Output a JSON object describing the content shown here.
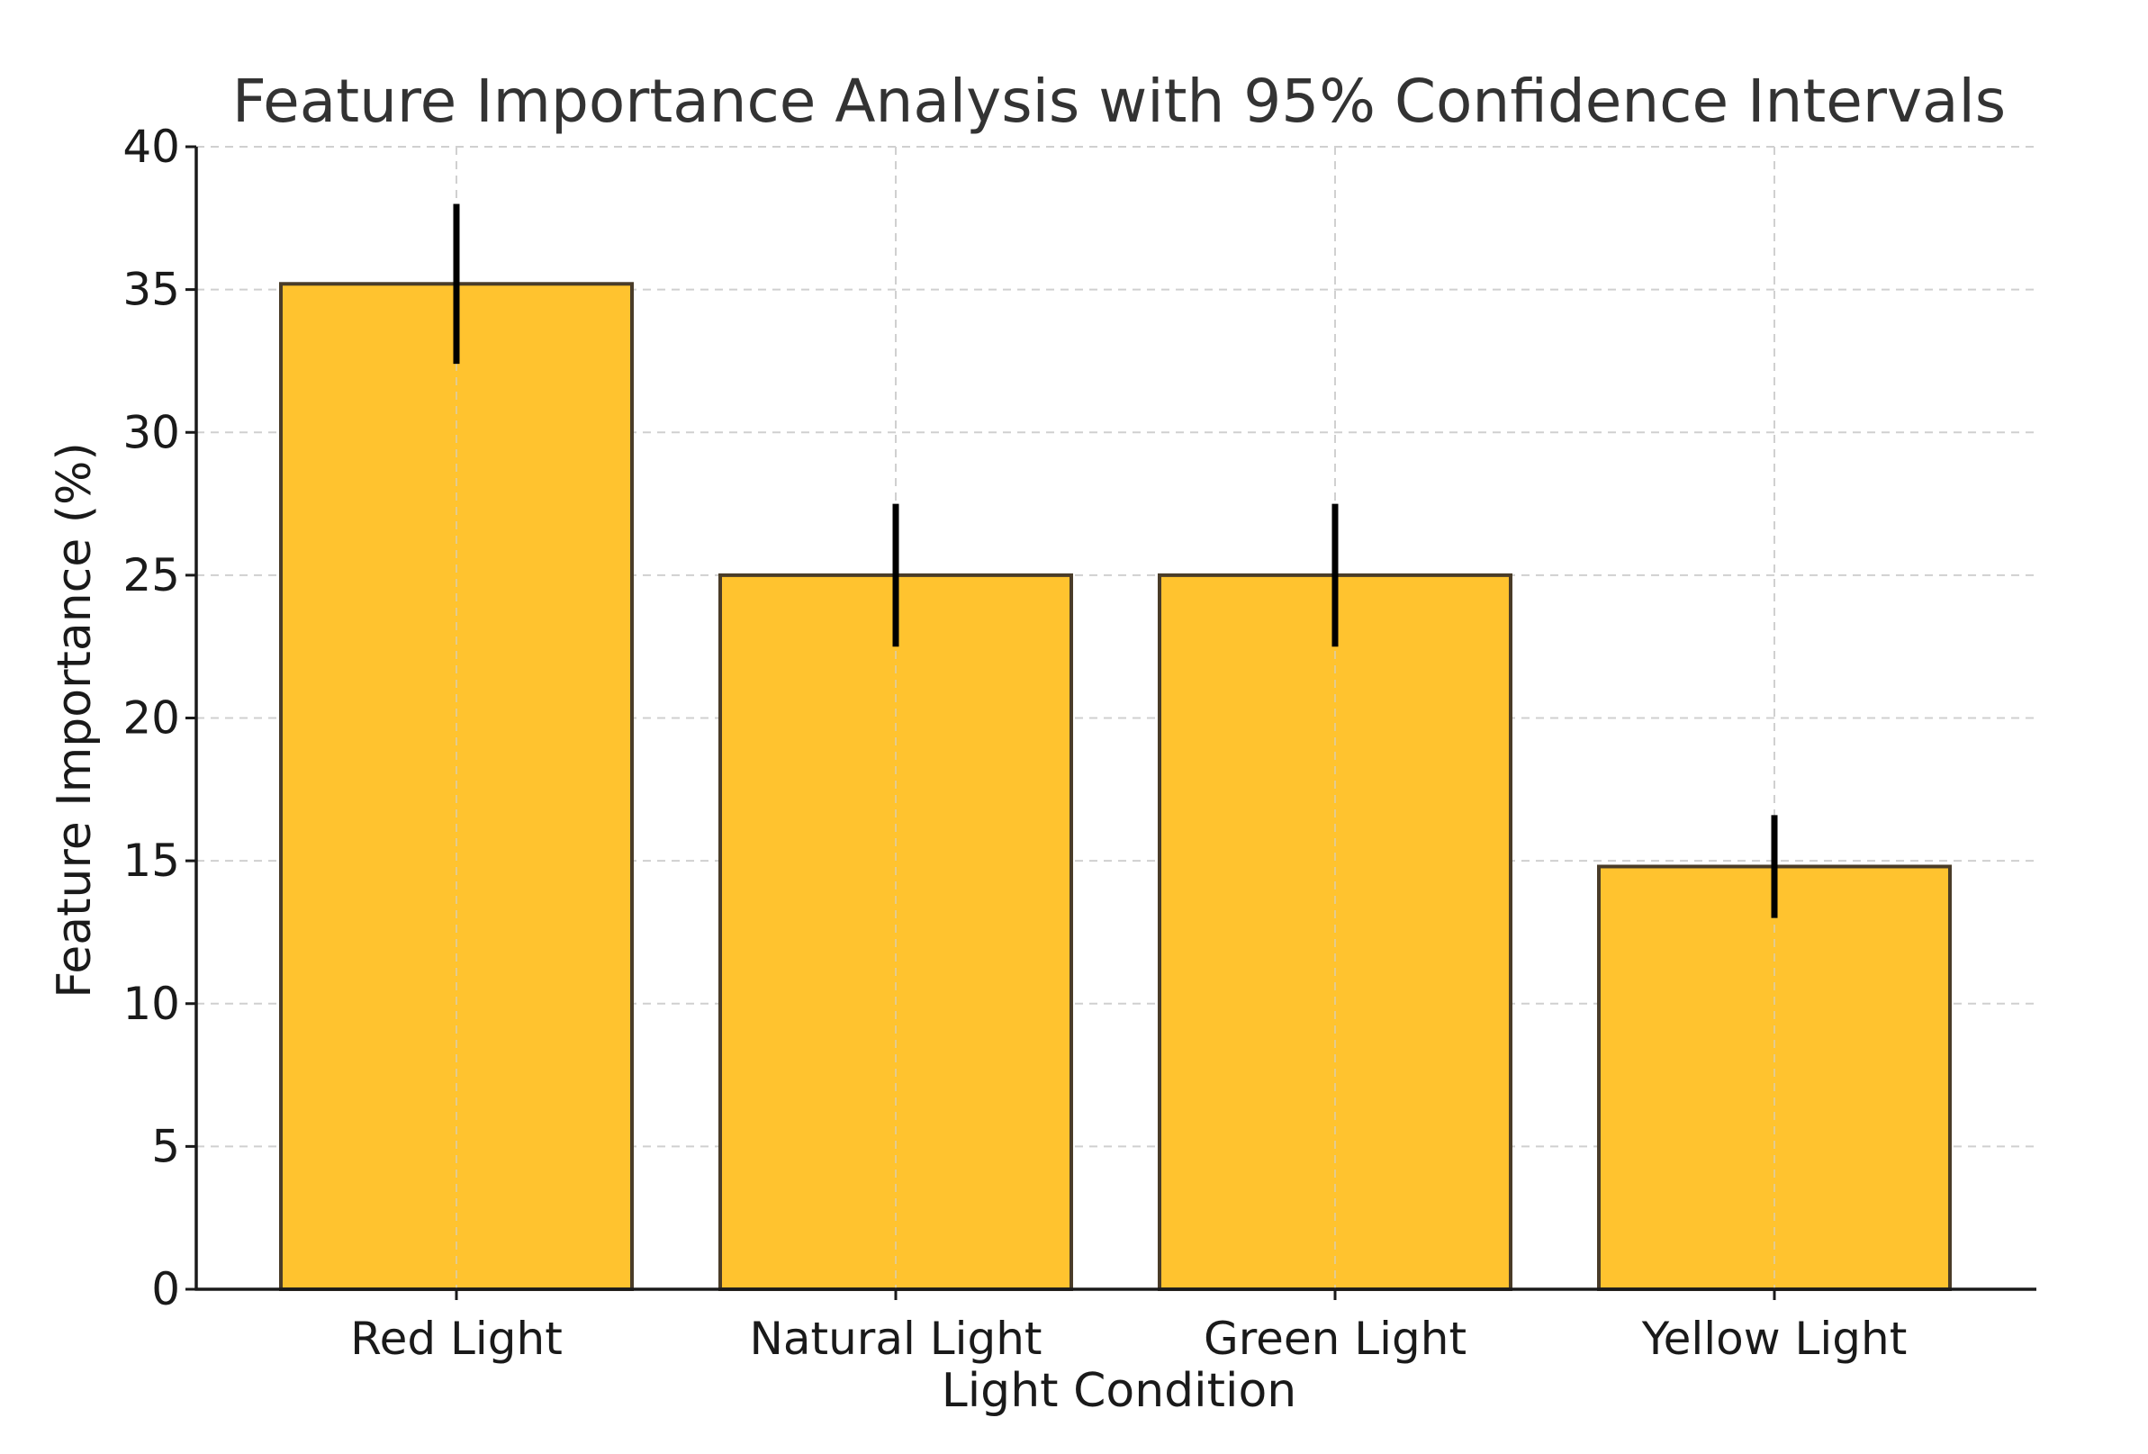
{
  "chart_data": {
    "type": "bar",
    "title": "Feature Importance Analysis with 95% Confidence Intervals",
    "xlabel": "Light Condition",
    "ylabel": "Feature Importance (%)",
    "categories": [
      "Red Light",
      "Natural Light",
      "Green Light",
      "Yellow Light"
    ],
    "values": [
      35.2,
      25.0,
      25.0,
      14.8
    ],
    "error_lower": [
      32.4,
      22.5,
      22.5,
      13.0
    ],
    "error_upper": [
      38.0,
      27.5,
      27.5,
      16.6
    ],
    "ylim": [
      0,
      40
    ],
    "yticks": [
      "0",
      "5",
      "10",
      "15",
      "20",
      "25",
      "30",
      "35",
      "40"
    ],
    "grid": true,
    "bar_color": "#ffc32f",
    "bar_edge_color": "#4a3c28",
    "error_color": "#000000"
  }
}
